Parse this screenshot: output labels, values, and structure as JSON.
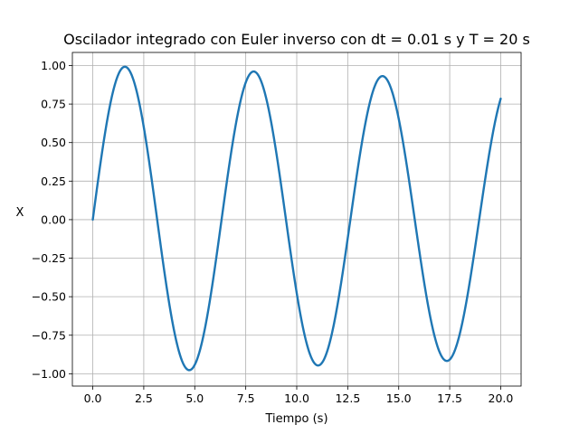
{
  "chart_data": {
    "type": "line",
    "title": "Oscilador integrado con Euler inverso con dt = 0.01 s y T = 20 s",
    "xlabel": "Tiempo (s)",
    "ylabel": "X",
    "xlim": [
      -1.0,
      21.0
    ],
    "ylim": [
      -1.08,
      1.085
    ],
    "grid": true,
    "x_ticks": [
      0.0,
      2.5,
      5.0,
      7.5,
      10.0,
      12.5,
      15.0,
      17.5,
      20.0
    ],
    "x_tick_labels": [
      "0.0",
      "2.5",
      "5.0",
      "7.5",
      "10.0",
      "12.5",
      "15.0",
      "17.5",
      "20.0"
    ],
    "y_ticks": [
      1.0,
      0.75,
      0.5,
      0.25,
      0.0,
      -0.25,
      -0.5,
      -0.75,
      -1.0
    ],
    "y_tick_labels": [
      "1.00",
      "0.75",
      "0.50",
      "0.25",
      "0.00",
      "−0.25",
      "−0.50",
      "−0.75",
      "−1.00"
    ],
    "series": [
      {
        "color": "#1f77b4",
        "model": {
          "form": "amplitude * exp(-decay * t) * sin(omega * t)",
          "amplitude": 1.0,
          "decay": 0.005,
          "omega": 0.995
        },
        "x": [
          0.0,
          1.58,
          4.74,
          7.9,
          11.06,
          14.21,
          17.37,
          20.0
        ],
        "y": [
          0.0,
          0.99,
          -0.97,
          0.96,
          -0.94,
          0.93,
          -0.91,
          0.83
        ]
      }
    ]
  }
}
